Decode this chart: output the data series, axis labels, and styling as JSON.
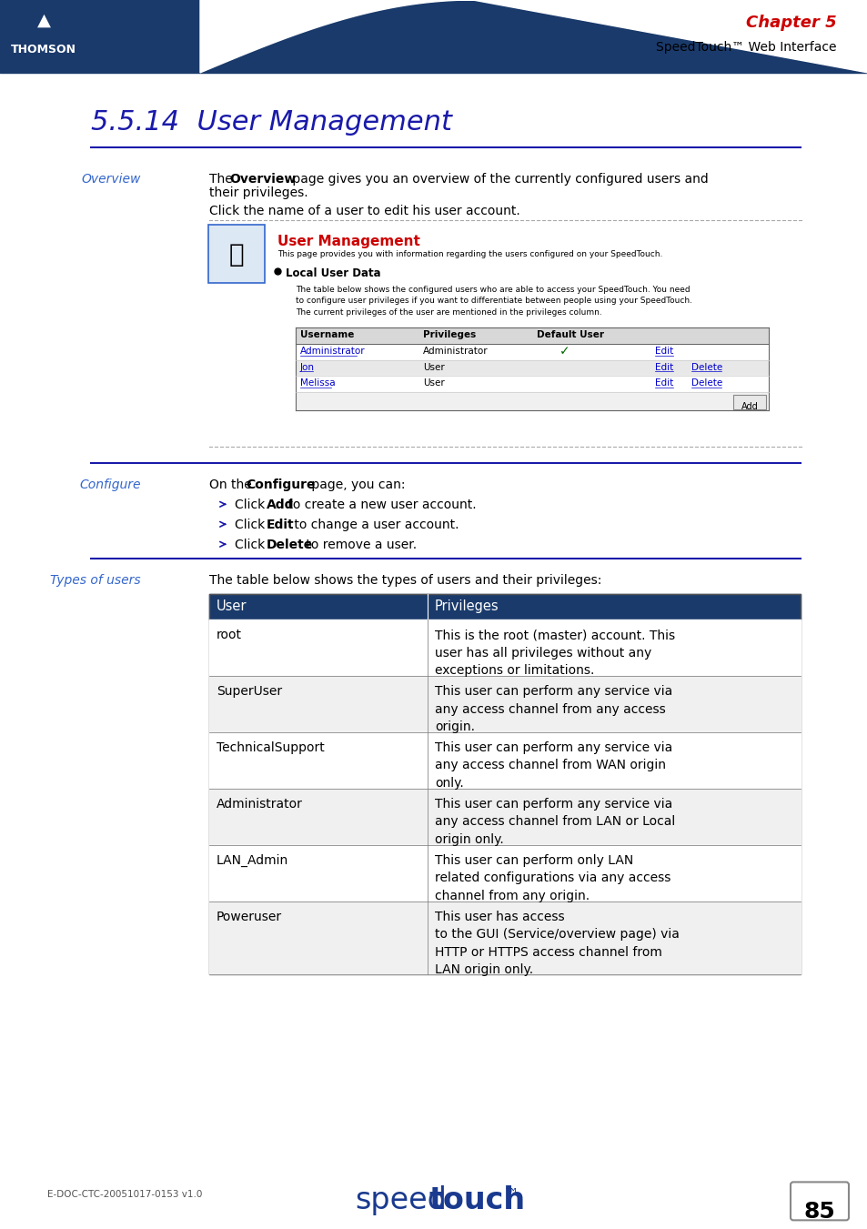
{
  "title": "5.5.14  User Management",
  "chapter": "Chapter 5",
  "chapter_sub": "SpeedTouch™ Web Interface",
  "header_bg": "#1a3a6b",
  "title_color": "#1a1aaa",
  "chapter_color": "#cc0000",
  "section_label_color": "#3366cc",
  "overview_label": "Overview",
  "um_title": "User Management",
  "um_subtitle": "This page provides you with information regarding the users configured on your SpeedTouch.",
  "um_section": "Local User Data",
  "um_desc": "The table below shows the configured users who are able to access your SpeedTouch. You need\nto configure user privileges if you want to differentiate between people using your SpeedTouch.\nThe current privileges of the user are mentioned in the privileges column.",
  "table_rows": [
    [
      "Administrator",
      "Administrator",
      "✓",
      "Edit",
      ""
    ],
    [
      "Jon",
      "User",
      "",
      "Edit",
      "Delete"
    ],
    [
      "Melissa",
      "User",
      "",
      "Edit",
      "Delete"
    ]
  ],
  "configure_label": "Configure",
  "configure_bullets": [
    [
      "Click ",
      "Add",
      " to create a new user account."
    ],
    [
      "Click ",
      "Edit",
      " to change a user account."
    ],
    [
      "Click ",
      "Delete",
      " to remove a user."
    ]
  ],
  "types_label": "Types of users",
  "types_text": "The table below shows the types of users and their privileges:",
  "types_table_rows": [
    [
      "root",
      "This is the root (master) account. This\nuser has all privileges without any\nexceptions or limitations."
    ],
    [
      "SuperUser",
      "This user can perform any service via\nany access channel from any access\norigin."
    ],
    [
      "TechnicalSupport",
      "This user can perform any service via\nany access channel from WAN origin\nonly."
    ],
    [
      "Administrator",
      "This user can perform any service via\nany access channel from LAN or Local\norigin only."
    ],
    [
      "LAN_Admin",
      "This user can perform only LAN\nrelated configurations via any access\nchannel from any origin."
    ],
    [
      "Poweruser",
      "This user has access\nto the GUI (Service/overview page) via\nHTTP or HTTPS access channel from\nLAN origin only."
    ]
  ],
  "footer_left": "E-DOC-CTC-20051017-0153 v1.0",
  "footer_page": "85",
  "bg_color": "#ffffff",
  "text_color": "#000000",
  "link_color": "#0000cc",
  "red_color": "#cc0000",
  "green_check_color": "#006600",
  "types_header_bg": "#1a3a6b",
  "types_header_color": "#ffffff",
  "dotted_line_color": "#aaaaaa"
}
